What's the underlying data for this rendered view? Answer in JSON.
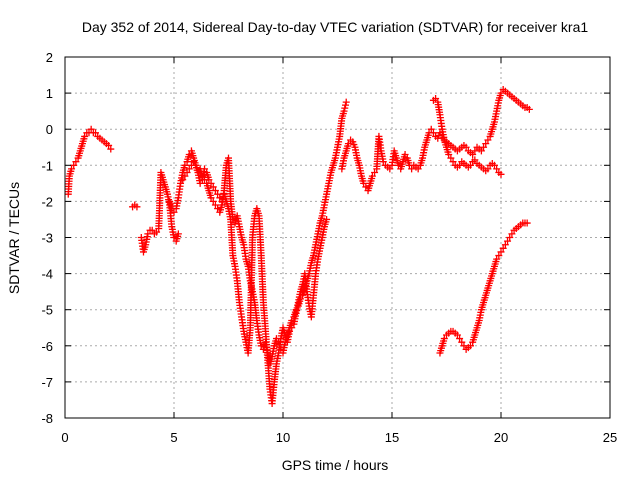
{
  "chart_data": {
    "type": "scatter",
    "title": "Day 352 of 2014, Sidereal Day-to-day VTEC variation (SDTVAR) for receiver kra1",
    "xlabel": "GPS time / hours",
    "ylabel": "SDTVAR / TECUs",
    "xlim": [
      0,
      25
    ],
    "ylim": [
      -8,
      2
    ],
    "x_ticks": [
      0,
      5,
      10,
      15,
      20,
      25
    ],
    "y_ticks": [
      -8,
      -7,
      -6,
      -5,
      -4,
      -3,
      -2,
      -1,
      0,
      1,
      2
    ],
    "x_tick_labels": [
      "0",
      "5",
      "10",
      "15",
      "20",
      "25"
    ],
    "y_tick_labels": [
      "-8",
      "-7",
      "-6",
      "-5",
      "-4",
      "-3",
      "-2",
      "-1",
      "0",
      "1",
      "2"
    ],
    "grid": true,
    "marker": "+",
    "color": "#ff0000",
    "series": [
      {
        "x": [
          0.15,
          0.2,
          0.3,
          0.4,
          0.5,
          0.6,
          0.7,
          0.8,
          0.9,
          1.0,
          1.1,
          1.2,
          1.3,
          1.4,
          1.5,
          1.6,
          1.7,
          1.8,
          1.9,
          2.0,
          2.1
        ],
        "y": [
          -1.8,
          -1.3,
          -1.1,
          -1.0,
          -0.9,
          -0.8,
          -0.6,
          -0.4,
          -0.2,
          -0.1,
          -0.1,
          -0.0,
          -0.1,
          -0.1,
          -0.2,
          -0.25,
          -0.3,
          -0.35,
          -0.4,
          -0.45,
          -0.55
        ]
      },
      {
        "x": [
          3.1,
          3.2,
          3.3
        ],
        "y": [
          -2.15,
          -2.1,
          -2.15
        ]
      },
      {
        "x": [
          3.5,
          3.6,
          3.7,
          3.8,
          3.9,
          4.0,
          4.1,
          4.2,
          4.3,
          4.4,
          4.5,
          4.6,
          4.7,
          4.8,
          4.9,
          5.0,
          5.1,
          5.2
        ],
        "y": [
          -3.0,
          -3.4,
          -3.2,
          -2.9,
          -2.8,
          -2.8,
          -2.9,
          -2.85,
          -2.75,
          -1.2,
          -1.4,
          -1.6,
          -1.8,
          -2.1,
          -2.7,
          -3.0,
          -3.1,
          -2.9
        ]
      },
      {
        "x": [
          4.8,
          4.9,
          5.0,
          5.1,
          5.2,
          5.3,
          5.4,
          5.5,
          5.6,
          5.7,
          5.8,
          5.9,
          6.0,
          6.1,
          6.2,
          6.3,
          6.4,
          6.5,
          6.6,
          6.7,
          6.8,
          6.9,
          7.0,
          7.1,
          7.2,
          7.3,
          7.4,
          7.5,
          7.6,
          7.7,
          7.8,
          7.9,
          8.0,
          8.1,
          8.2,
          8.3,
          8.4,
          8.5,
          8.6,
          8.7,
          8.8,
          8.9,
          9.0,
          9.1,
          9.2,
          9.3,
          9.4,
          9.5,
          9.6,
          9.7,
          9.8,
          9.9,
          10.0,
          10.1,
          10.2,
          10.3,
          10.4,
          10.5,
          10.6,
          10.7,
          10.8,
          10.9,
          11.0,
          11.1,
          11.2,
          11.3,
          11.4,
          11.5,
          11.6,
          11.7,
          11.8,
          11.9,
          12.0,
          12.1,
          12.2,
          12.3,
          12.4,
          12.5,
          12.6,
          12.7,
          12.8,
          12.9
        ],
        "y": [
          -2.0,
          -2.2,
          -2.3,
          -2.2,
          -1.9,
          -1.5,
          -1.2,
          -1.0,
          -0.9,
          -0.7,
          -0.6,
          -0.8,
          -1.0,
          -1.2,
          -1.1,
          -1.3,
          -1.4,
          -1.5,
          -1.7,
          -1.9,
          -2.0,
          -2.1,
          -2.2,
          -2.3,
          -2.1,
          -1.7,
          -1.0,
          -0.8,
          -2.0,
          -2.5,
          -2.6,
          -2.4,
          -2.7,
          -3.0,
          -3.2,
          -3.6,
          -3.8,
          -4.2,
          -4.5,
          -4.8,
          -5.3,
          -5.7,
          -6.0,
          -6.1,
          -5.9,
          -6.2,
          -6.5,
          -6.3,
          -6.0,
          -5.8,
          -5.9,
          -6.1,
          -6.2,
          -5.9,
          -5.7,
          -5.5,
          -5.3,
          -5.2,
          -5.0,
          -4.9,
          -4.7,
          -4.6,
          -4.4,
          -4.2,
          -4.0,
          -3.7,
          -3.5,
          -3.2,
          -2.9,
          -2.6,
          -2.4,
          -2.1,
          -1.8,
          -1.5,
          -1.2,
          -1.0,
          -0.8,
          -0.5,
          -0.2,
          0.3,
          0.5,
          0.75
        ]
      },
      {
        "x": [
          5.4,
          5.5,
          5.6,
          5.7,
          5.8,
          5.9,
          6.0,
          6.1,
          6.2,
          6.3,
          6.4,
          6.5,
          6.6,
          6.7,
          6.8,
          6.9,
          7.0,
          7.1,
          7.2,
          7.3,
          7.4,
          7.5,
          7.6,
          7.7,
          7.8,
          7.9,
          8.0,
          8.1,
          8.2,
          8.3,
          8.4,
          8.5,
          8.6,
          8.7,
          8.8,
          8.9,
          9.0,
          9.1,
          9.2,
          9.3,
          9.4,
          9.5,
          9.6,
          9.7,
          9.8,
          9.9,
          10.0,
          10.1,
          10.2,
          10.3,
          10.4,
          10.5,
          10.6,
          10.7,
          10.8,
          10.9,
          11.0,
          11.1,
          11.2,
          11.3,
          11.4,
          11.5,
          11.6,
          11.7,
          11.8,
          11.9,
          12.0
        ],
        "y": [
          -1.4,
          -1.3,
          -1.2,
          -1.1,
          -1.0,
          -0.9,
          -1.0,
          -1.2,
          -1.5,
          -1.4,
          -1.1,
          -1.2,
          -1.4,
          -1.5,
          -1.6,
          -1.7,
          -1.8,
          -1.9,
          -2.0,
          -1.8,
          -2.0,
          -2.2,
          -2.5,
          -3.5,
          -3.8,
          -4.2,
          -4.8,
          -5.2,
          -5.6,
          -5.9,
          -6.2,
          -5.5,
          -3.0,
          -2.4,
          -2.2,
          -2.4,
          -3.5,
          -4.8,
          -5.6,
          -6.4,
          -7.2,
          -7.6,
          -7.0,
          -6.5,
          -6.2,
          -5.8,
          -5.5,
          -5.7,
          -5.9,
          -5.6,
          -5.5,
          -5.4,
          -5.1,
          -4.8,
          -4.5,
          -4.3,
          -4.0,
          -4.5,
          -4.9,
          -5.2,
          -4.6,
          -4.0,
          -3.6,
          -3.3,
          -3.0,
          -2.7,
          -2.5
        ]
      },
      {
        "x": [
          12.7,
          12.8,
          12.9,
          13.0,
          13.1,
          13.2,
          13.3,
          13.4,
          13.5,
          13.6,
          13.7,
          13.8,
          13.9,
          14.0,
          14.1,
          14.2,
          14.3,
          14.4,
          14.5,
          14.6,
          14.7,
          14.8,
          14.9,
          15.0,
          15.1,
          15.2,
          15.3,
          15.4,
          15.5,
          15.6,
          15.7,
          15.8,
          15.9,
          16.0,
          16.1,
          16.2,
          16.3,
          16.4,
          16.5,
          16.6,
          16.7,
          16.8,
          16.9,
          17.0,
          17.1,
          17.2
        ],
        "y": [
          -1.1,
          -0.8,
          -0.6,
          -0.4,
          -0.3,
          -0.35,
          -0.5,
          -0.8,
          -1.0,
          -1.3,
          -1.5,
          -1.6,
          -1.7,
          -1.5,
          -1.3,
          -1.2,
          -1.1,
          -0.2,
          -0.6,
          -0.9,
          -1.0,
          -1.05,
          -1.1,
          -1.0,
          -0.6,
          -0.8,
          -1.0,
          -1.1,
          -0.9,
          -0.7,
          -0.8,
          -1.0,
          -1.1,
          -1.0,
          -1.05,
          -1.1,
          -1.0,
          -0.8,
          -0.5,
          -0.3,
          -0.1,
          0.0,
          -0.1,
          -0.2,
          -0.25,
          -0.1
        ]
      },
      {
        "x": [
          16.9,
          17.0,
          17.1,
          17.2,
          17.3,
          17.4,
          17.5,
          17.6,
          17.7,
          17.8,
          17.9,
          18.0,
          18.1,
          18.2,
          18.3,
          18.4,
          18.5,
          18.6,
          18.7,
          18.8,
          18.9,
          19.0,
          19.1,
          19.2,
          19.3,
          19.4,
          19.5,
          19.6,
          19.7,
          19.8,
          19.9,
          20.0
        ],
        "y": [
          0.8,
          0.85,
          0.75,
          0.4,
          0.0,
          -0.3,
          -0.5,
          -0.7,
          -0.8,
          -0.9,
          -1.0,
          -1.05,
          -1.0,
          -0.9,
          -0.95,
          -1.0,
          -1.05,
          -1.0,
          -0.9,
          -0.85,
          -0.95,
          -1.0,
          -1.05,
          -1.1,
          -1.15,
          -1.1,
          -1.0,
          -0.95,
          -1.0,
          -1.1,
          -1.2,
          -1.25
        ]
      },
      {
        "x": [
          17.3,
          17.4,
          17.5,
          17.6,
          17.7,
          17.8,
          17.9,
          18.0,
          18.1,
          18.2,
          18.3,
          18.4,
          18.5,
          18.6,
          18.7,
          18.8,
          18.9,
          19.0,
          19.1,
          19.2,
          19.3,
          19.4,
          19.5,
          19.6,
          19.7,
          19.8,
          19.9,
          20.0,
          20.1,
          20.2,
          20.3,
          20.4,
          20.5,
          20.6,
          20.7,
          20.8,
          20.9,
          21.0,
          21.1,
          21.2,
          21.3
        ],
        "y": [
          -0.25,
          -0.3,
          -0.35,
          -0.4,
          -0.45,
          -0.5,
          -0.55,
          -0.6,
          -0.55,
          -0.5,
          -0.45,
          -0.5,
          -0.6,
          -0.65,
          -0.7,
          -0.6,
          -0.5,
          -0.55,
          -0.6,
          -0.5,
          -0.4,
          -0.3,
          -0.2,
          0.0,
          0.2,
          0.5,
          0.8,
          1.0,
          1.1,
          1.05,
          1.0,
          0.95,
          0.9,
          0.85,
          0.8,
          0.75,
          0.7,
          0.65,
          0.6,
          0.6,
          0.55
        ]
      },
      {
        "x": [
          17.2,
          17.3,
          17.4,
          17.5,
          17.6,
          17.7,
          17.8,
          17.9,
          18.0,
          18.1,
          18.2,
          18.3,
          18.4,
          18.5,
          18.6,
          18.7,
          18.8,
          18.9,
          19.0,
          19.1,
          19.2,
          19.3,
          19.4,
          19.5,
          19.6,
          19.7,
          19.8,
          19.9,
          20.0,
          20.1,
          20.2,
          20.3,
          20.4,
          20.5,
          20.6,
          20.7,
          20.8,
          20.9,
          21.0,
          21.1,
          21.2
        ],
        "y": [
          -6.2,
          -6.0,
          -5.8,
          -5.7,
          -5.65,
          -5.6,
          -5.6,
          -5.65,
          -5.7,
          -5.8,
          -5.9,
          -6.0,
          -6.1,
          -6.05,
          -6.0,
          -5.9,
          -5.7,
          -5.5,
          -5.3,
          -5.0,
          -4.8,
          -4.6,
          -4.4,
          -4.2,
          -4.0,
          -3.8,
          -3.6,
          -3.5,
          -3.4,
          -3.3,
          -3.2,
          -3.1,
          -3.0,
          -2.9,
          -2.8,
          -2.75,
          -2.7,
          -2.65,
          -2.6,
          -2.6,
          -2.6
        ]
      }
    ]
  }
}
